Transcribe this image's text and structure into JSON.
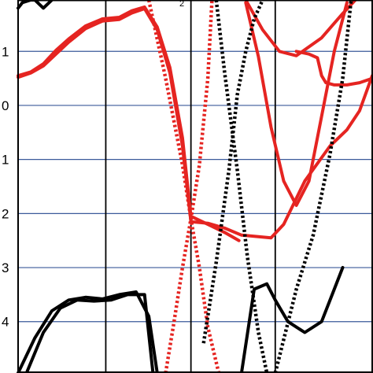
{
  "chart_data": {
    "type": "line",
    "title": "",
    "xlabel": "",
    "ylabel": "",
    "x_range": [
      0,
      4.2
    ],
    "y_range": [
      -4.95,
      1.95
    ],
    "top_glyph": "2",
    "y_ticks": [
      {
        "value": 1,
        "label": "1"
      },
      {
        "value": 0,
        "label": "0"
      },
      {
        "value": -1,
        "label": "1"
      },
      {
        "value": -2,
        "label": "2"
      },
      {
        "value": -3,
        "label": "3"
      },
      {
        "value": -4,
        "label": "4"
      }
    ],
    "x_dividers": [
      1.04,
      2.05,
      3.05
    ],
    "colors": {
      "red": "#e52421",
      "black": "#000000",
      "grid": "#3a5a9a",
      "divider": "#000000",
      "frame": "#000000"
    },
    "series": [
      {
        "color": "red",
        "style": "solid",
        "x": [
          0,
          0.15,
          0.3,
          0.45,
          0.6,
          0.8,
          1.0,
          1.2,
          1.35,
          1.5,
          1.65,
          1.8,
          1.95,
          2.05,
          2.25,
          2.45,
          2.62
        ],
        "y": [
          0.55,
          0.62,
          0.77,
          1.02,
          1.23,
          1.47,
          1.6,
          1.63,
          1.75,
          1.82,
          1.45,
          0.7,
          -0.6,
          -2.05,
          -2.2,
          -2.35,
          -2.5
        ]
      },
      {
        "color": "red",
        "style": "solid",
        "x": [
          0,
          0.15,
          0.3,
          0.45,
          0.6,
          0.8,
          1.0,
          1.2,
          1.35,
          1.5,
          1.65,
          1.8,
          1.95,
          2.05
        ],
        "y": [
          0.52,
          0.6,
          0.73,
          0.95,
          1.17,
          1.42,
          1.56,
          1.59,
          1.71,
          1.79,
          1.4,
          0.6,
          -0.75,
          -2.15
        ]
      },
      {
        "color": "red",
        "style": "solid",
        "x": [
          2.05,
          2.25,
          2.45,
          2.65,
          2.8,
          3.0,
          3.15,
          3.4,
          3.7,
          3.9,
          4.05,
          4.2
        ],
        "y": [
          -2.15,
          -2.18,
          -2.27,
          -2.4,
          -2.42,
          -2.45,
          -2.2,
          -1.4,
          -0.75,
          -0.45,
          -0.1,
          0.55
        ]
      },
      {
        "color": "red",
        "style": "solid",
        "x": [
          3.3,
          3.45,
          3.55,
          3.6,
          3.65,
          3.75,
          3.9,
          4.05,
          4.2
        ],
        "y": [
          1.0,
          0.95,
          0.88,
          0.55,
          0.42,
          0.38,
          0.38,
          0.42,
          0.5
        ]
      },
      {
        "color": "red",
        "style": "solid",
        "x": [
          2.7,
          2.9,
          3.1,
          3.3,
          3.6,
          3.85,
          4.0
        ],
        "y": [
          1.95,
          1.4,
          1.0,
          0.92,
          1.25,
          1.7,
          1.95
        ]
      },
      {
        "color": "red",
        "style": "solid",
        "x": [
          2.7,
          2.85,
          3.0,
          3.15,
          3.3,
          3.45,
          3.6,
          3.75,
          3.9
        ],
        "y": [
          1.9,
          0.9,
          -0.4,
          -1.4,
          -1.85,
          -1.4,
          -0.2,
          1.0,
          1.9
        ]
      },
      {
        "color": "red",
        "style": "dotted",
        "x": [
          1.55,
          1.75,
          1.95,
          2.05,
          2.15,
          2.25,
          2.38
        ],
        "y": [
          1.95,
          0.5,
          -1.1,
          -2.1,
          -3.0,
          -4.1,
          -4.95
        ]
      },
      {
        "color": "red",
        "style": "dotted",
        "x": [
          1.75,
          1.85,
          1.95,
          2.05,
          2.15,
          2.25,
          2.3
        ],
        "y": [
          -4.95,
          -4.0,
          -3.0,
          -2.1,
          -1.1,
          0.5,
          1.95
        ]
      },
      {
        "color": "black",
        "style": "dotted",
        "x": [
          2.2,
          2.35,
          2.5,
          2.6,
          2.7,
          2.8,
          2.9
        ],
        "y": [
          -4.4,
          -2.9,
          -1.2,
          0.2,
          1.0,
          1.6,
          1.95
        ]
      },
      {
        "color": "black",
        "style": "dotted",
        "x": [
          2.35,
          2.45,
          2.6,
          2.72,
          2.85,
          2.95
        ],
        "y": [
          1.95,
          0.6,
          -1.2,
          -2.8,
          -4.2,
          -4.95
        ]
      },
      {
        "color": "black",
        "style": "dotted",
        "x": [
          3.05,
          3.3,
          3.5,
          3.7,
          3.85,
          3.95
        ],
        "y": [
          -4.95,
          -3.4,
          -2.4,
          -0.9,
          0.5,
          1.95
        ]
      },
      {
        "color": "black",
        "style": "solid",
        "x": [
          0,
          0.2,
          0.4,
          0.6,
          0.8,
          1.0,
          1.2,
          1.4,
          1.55,
          1.65
        ],
        "y": [
          -4.95,
          -4.3,
          -3.8,
          -3.6,
          -3.55,
          -3.58,
          -3.5,
          -3.45,
          -3.9,
          -4.95
        ]
      },
      {
        "color": "black",
        "style": "solid",
        "x": [
          0.1,
          0.3,
          0.5,
          0.7,
          0.9,
          1.1,
          1.3,
          1.5,
          1.6
        ],
        "y": [
          -4.95,
          -4.2,
          -3.75,
          -3.6,
          -3.62,
          -3.6,
          -3.5,
          -3.5,
          -4.95
        ]
      },
      {
        "color": "black",
        "style": "solid",
        "x": [
          2.65,
          2.8,
          2.95,
          3.05,
          3.2,
          3.4,
          3.6,
          3.75,
          3.85
        ],
        "y": [
          -4.95,
          -3.4,
          -3.3,
          -3.6,
          -4.0,
          -4.2,
          -4.0,
          -3.4,
          -3.0
        ]
      },
      {
        "color": "black",
        "style": "solid",
        "x": [
          0,
          0.05,
          0.15,
          0.2,
          0.3,
          0.4
        ],
        "y": [
          1.8,
          1.9,
          1.95,
          1.95,
          1.8,
          1.95
        ]
      }
    ]
  }
}
